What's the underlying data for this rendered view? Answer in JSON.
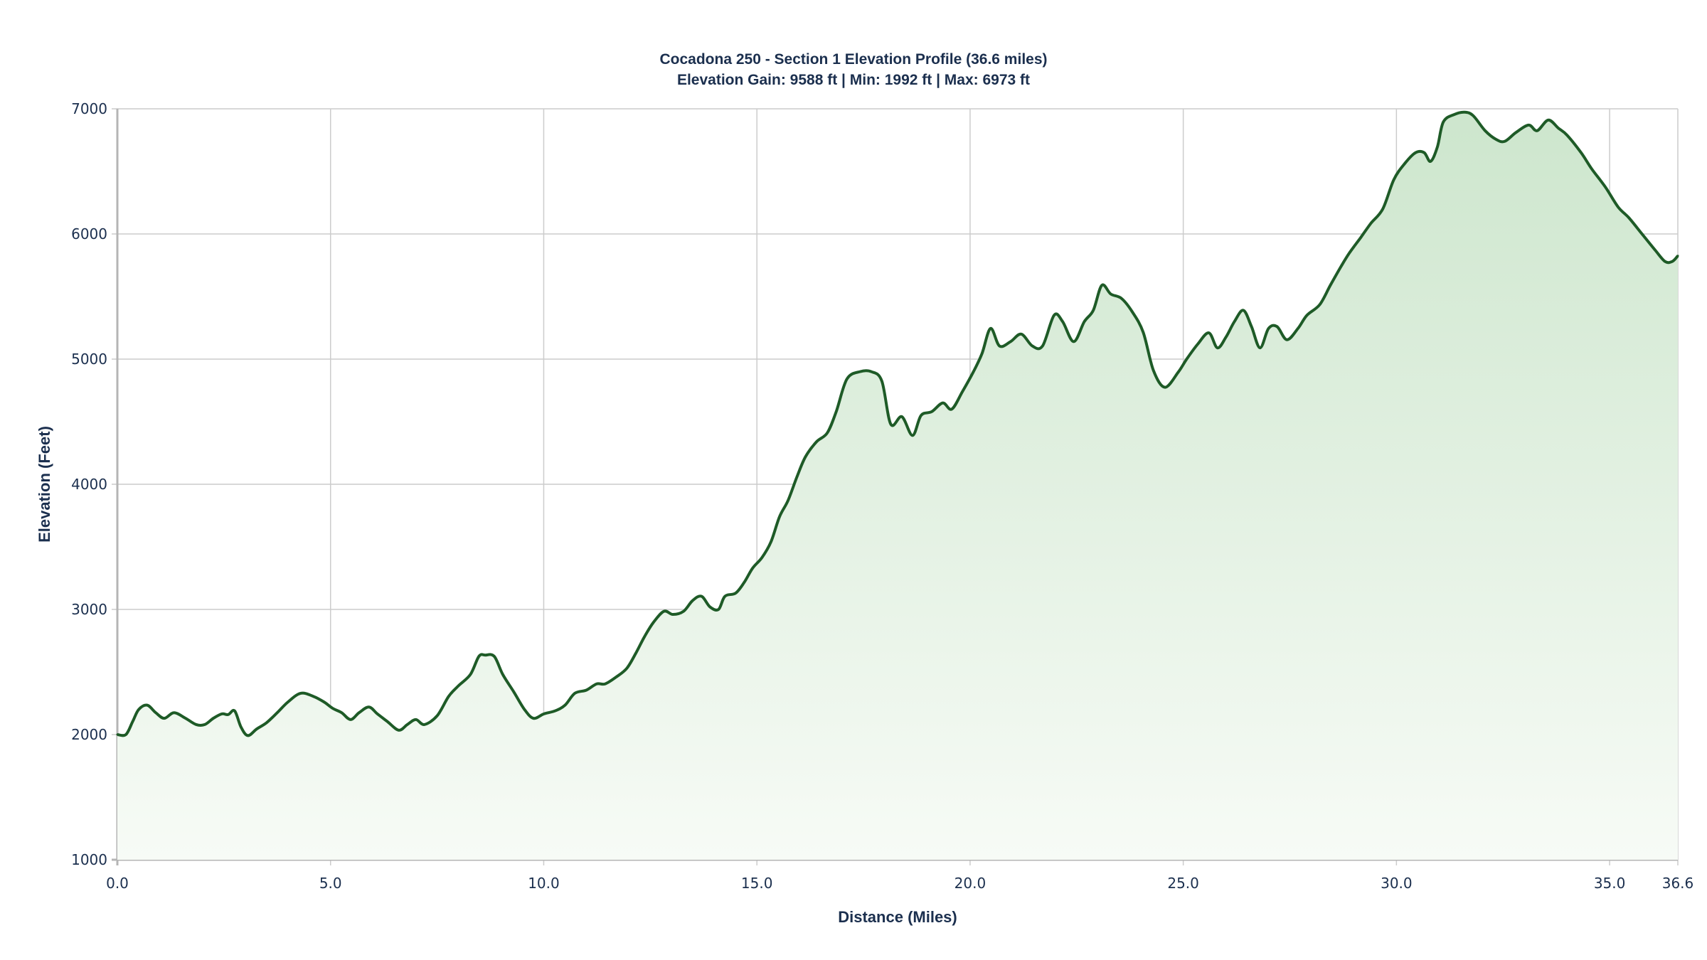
{
  "chart_data": {
    "type": "area",
    "title": "Cocadona 250 - Section 1 Elevation Profile (36.6 miles)",
    "subtitle": "Elevation Gain: 9588 ft | Min: 1992 ft | Max: 6973 ft",
    "xlabel": "Distance (Miles)",
    "ylabel": "Elevation (Feet)",
    "xlim": [
      0,
      36.6
    ],
    "ylim": [
      1000,
      7000
    ],
    "xticks": [
      "0.0",
      "5.0",
      "10.0",
      "15.0",
      "20.0",
      "25.0",
      "30.0",
      "35.0",
      "36.6"
    ],
    "yticks": [
      "1000",
      "2000",
      "3000",
      "4000",
      "5000",
      "6000",
      "7000"
    ],
    "grid": true,
    "colors": {
      "line": "#1e5b27",
      "fill_top": "#cde6cd",
      "fill_bottom": "#f7fbf6",
      "grid": "#cccccc",
      "text": "#1b2f4e"
    },
    "x": [
      0,
      0.2,
      0.36,
      0.5,
      0.7,
      0.9,
      1.1,
      1.33,
      1.6,
      1.85,
      2.05,
      2.25,
      2.45,
      2.6,
      2.75,
      2.9,
      3.06,
      3.27,
      3.5,
      3.75,
      4.0,
      4.3,
      4.6,
      4.85,
      5.05,
      5.26,
      5.47,
      5.67,
      5.9,
      6.1,
      6.33,
      6.6,
      6.8,
      7.0,
      7.2,
      7.5,
      7.77,
      8.0,
      8.28,
      8.48,
      8.63,
      8.84,
      9.04,
      9.3,
      9.55,
      9.76,
      10.0,
      10.27,
      10.5,
      10.73,
      11.0,
      11.24,
      11.44,
      11.7,
      11.95,
      12.16,
      12.36,
      12.57,
      12.82,
      13.03,
      13.28,
      13.49,
      13.7,
      13.9,
      14.1,
      14.25,
      14.5,
      14.7,
      14.9,
      15.12,
      15.33,
      15.53,
      15.73,
      15.94,
      16.14,
      16.4,
      16.65,
      16.86,
      17.11,
      17.42,
      17.68,
      17.93,
      18.14,
      18.4,
      18.65,
      18.85,
      19.1,
      19.36,
      19.57,
      19.82,
      20.08,
      20.28,
      20.48,
      20.69,
      20.95,
      21.2,
      21.46,
      21.7,
      21.97,
      22.17,
      22.43,
      22.68,
      22.89,
      23.09,
      23.3,
      23.55,
      23.8,
      24.06,
      24.3,
      24.57,
      24.88,
      25.08,
      25.34,
      25.6,
      25.8,
      26.0,
      26.2,
      26.41,
      26.6,
      26.8,
      27.0,
      27.2,
      27.43,
      27.69,
      27.9,
      28.2,
      28.45,
      28.7,
      28.9,
      29.17,
      29.4,
      29.68,
      29.94,
      30.2,
      30.45,
      30.65,
      30.8,
      30.96,
      31.1,
      31.36,
      31.6,
      31.8,
      32.08,
      32.34,
      32.54,
      32.8,
      33.1,
      33.3,
      33.56,
      33.8,
      34.0,
      34.33,
      34.58,
      34.9,
      35.2,
      35.45,
      35.76,
      36.07,
      36.3,
      36.47,
      36.6
    ],
    "y": [
      2000,
      2000,
      2105,
      2200,
      2235,
      2175,
      2130,
      2175,
      2130,
      2080,
      2080,
      2130,
      2165,
      2160,
      2190,
      2060,
      1992,
      2045,
      2095,
      2175,
      2260,
      2330,
      2305,
      2260,
      2210,
      2175,
      2120,
      2175,
      2220,
      2165,
      2105,
      2035,
      2080,
      2120,
      2080,
      2150,
      2305,
      2390,
      2480,
      2625,
      2635,
      2625,
      2480,
      2340,
      2200,
      2130,
      2165,
      2190,
      2235,
      2330,
      2355,
      2405,
      2405,
      2460,
      2530,
      2650,
      2780,
      2895,
      2985,
      2960,
      2985,
      3070,
      3105,
      3020,
      3000,
      3105,
      3130,
      3215,
      3330,
      3415,
      3540,
      3740,
      3870,
      4060,
      4220,
      4340,
      4410,
      4580,
      4840,
      4900,
      4900,
      4825,
      4480,
      4540,
      4390,
      4550,
      4580,
      4650,
      4600,
      4740,
      4900,
      5045,
      5245,
      5105,
      5140,
      5200,
      5105,
      5105,
      5350,
      5300,
      5140,
      5300,
      5390,
      5590,
      5520,
      5485,
      5380,
      5215,
      4910,
      4775,
      4895,
      5000,
      5120,
      5210,
      5090,
      5175,
      5300,
      5390,
      5260,
      5090,
      5245,
      5260,
      5155,
      5245,
      5350,
      5435,
      5590,
      5740,
      5850,
      5975,
      6085,
      6200,
      6435,
      6565,
      6650,
      6650,
      6580,
      6695,
      6895,
      6955,
      6973,
      6945,
      6825,
      6755,
      6740,
      6810,
      6870,
      6825,
      6910,
      6845,
      6790,
      6650,
      6520,
      6375,
      6215,
      6130,
      6000,
      5870,
      5780,
      5780,
      5825
    ]
  }
}
